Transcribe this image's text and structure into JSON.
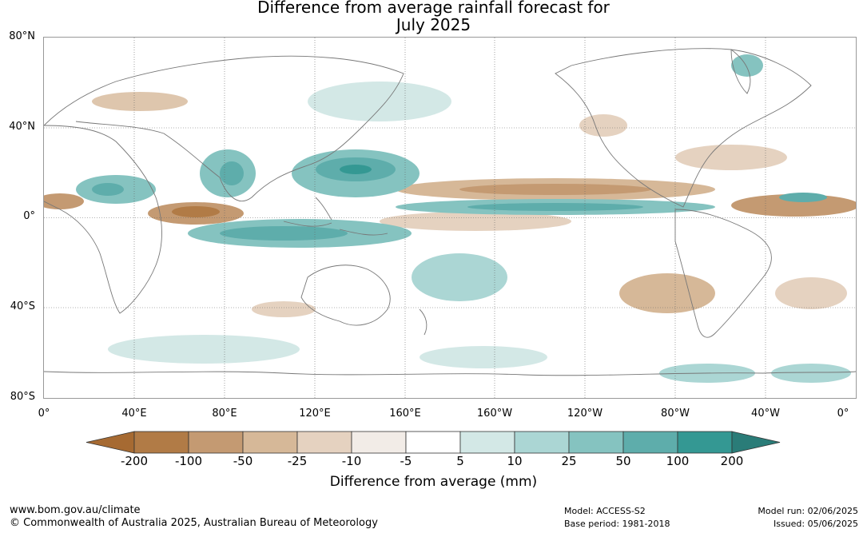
{
  "title_line1": "Difference from average rainfall forecast for",
  "title_line2": "July 2025",
  "lat_labels": [
    "80°N",
    "40°N",
    "0°",
    "40°S",
    "80°S"
  ],
  "lon_labels": [
    "0°",
    "40°E",
    "80°E",
    "120°E",
    "160°E",
    "160°W",
    "120°W",
    "80°W",
    "40°W",
    "0°"
  ],
  "colorbar": {
    "ticks": [
      "-200",
      "-100",
      "-50",
      "-25",
      "-10",
      "-5",
      "5",
      "10",
      "25",
      "50",
      "100",
      "200"
    ],
    "colors": [
      "#a66a32",
      "#b17b46",
      "#c49a72",
      "#d6b898",
      "#e5d2c0",
      "#f2ece7",
      "#ffffff",
      "#d3e8e6",
      "#abd6d4",
      "#85c3c0",
      "#5eadab",
      "#349893",
      "#2a7c78"
    ],
    "title": "Difference from average (mm)"
  },
  "footer": {
    "website": "www.bom.gov.au/climate",
    "copyright": "© Commonwealth of Australia 2025, Australian Bureau of Meteorology",
    "model": "Model: ACCESS-S2",
    "base_period": "Base period: 1981-2018",
    "model_run": "Model run: 02/06/2025",
    "issued": "Issued: 05/06/2025"
  }
}
